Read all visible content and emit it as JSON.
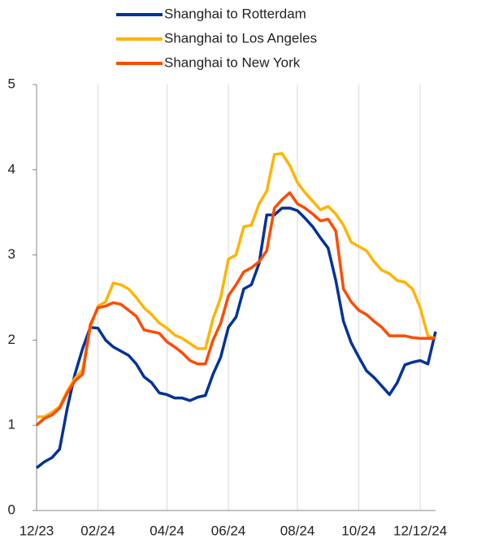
{
  "chart_data": {
    "type": "line",
    "categories": [
      "12/23",
      null,
      null,
      null,
      null,
      null,
      null,
      null,
      "02/24",
      null,
      null,
      null,
      null,
      null,
      null,
      null,
      null,
      "04/24",
      null,
      null,
      null,
      null,
      null,
      null,
      null,
      "06/24",
      null,
      null,
      null,
      null,
      null,
      null,
      null,
      null,
      "08/24",
      null,
      null,
      null,
      null,
      null,
      null,
      null,
      "10/24",
      null,
      null,
      null,
      null,
      null,
      null,
      null,
      "12/12/24",
      null,
      null
    ],
    "series": [
      {
        "name": "Shanghai to Rotterdam",
        "color": "#003299",
        "values": [
          0.5,
          0.57,
          0.62,
          0.72,
          1.2,
          1.6,
          1.9,
          2.15,
          2.14,
          2.0,
          1.92,
          1.87,
          1.82,
          1.72,
          1.57,
          1.5,
          1.38,
          1.36,
          1.32,
          1.32,
          1.29,
          1.33,
          1.35,
          1.6,
          1.8,
          2.15,
          2.27,
          2.6,
          2.65,
          2.9,
          3.47,
          3.47,
          3.55,
          3.55,
          3.52,
          3.43,
          3.33,
          3.2,
          3.08,
          2.7,
          2.22,
          1.97,
          1.8,
          1.64,
          1.56,
          1.46,
          1.36,
          1.5,
          1.71,
          1.74,
          1.76,
          1.72,
          2.1
        ]
      },
      {
        "name": "Shanghai to Los Angeles",
        "color": "#FFB400",
        "values": [
          1.1,
          1.1,
          1.15,
          1.22,
          1.4,
          1.55,
          1.65,
          2.15,
          2.4,
          2.45,
          2.67,
          2.65,
          2.6,
          2.5,
          2.38,
          2.3,
          2.2,
          2.14,
          2.06,
          2.02,
          1.96,
          1.9,
          1.9,
          2.25,
          2.5,
          2.95,
          3.0,
          3.33,
          3.35,
          3.6,
          3.75,
          4.18,
          4.19,
          4.05,
          3.85,
          3.73,
          3.63,
          3.53,
          3.57,
          3.48,
          3.35,
          3.15,
          3.1,
          3.05,
          2.92,
          2.82,
          2.78,
          2.7,
          2.68,
          2.6,
          2.38,
          2.05,
          2.02
        ]
      },
      {
        "name": "Shanghai to New York",
        "color": "#FF4B00",
        "values": [
          1.0,
          1.08,
          1.12,
          1.2,
          1.38,
          1.52,
          1.6,
          2.18,
          2.38,
          2.4,
          2.44,
          2.42,
          2.35,
          2.28,
          2.12,
          2.1,
          2.08,
          1.98,
          1.92,
          1.85,
          1.76,
          1.72,
          1.72,
          2.0,
          2.2,
          2.52,
          2.65,
          2.8,
          2.85,
          2.92,
          3.05,
          3.55,
          3.65,
          3.73,
          3.6,
          3.55,
          3.48,
          3.4,
          3.42,
          3.28,
          2.6,
          2.45,
          2.35,
          2.3,
          2.22,
          2.15,
          2.05,
          2.05,
          2.05,
          2.03,
          2.02,
          2.02,
          2.02
        ]
      }
    ],
    "ylim": [
      0,
      5
    ],
    "yticks": [
      0,
      1,
      2,
      3,
      4,
      5
    ],
    "grid": "x",
    "legend": "top"
  }
}
